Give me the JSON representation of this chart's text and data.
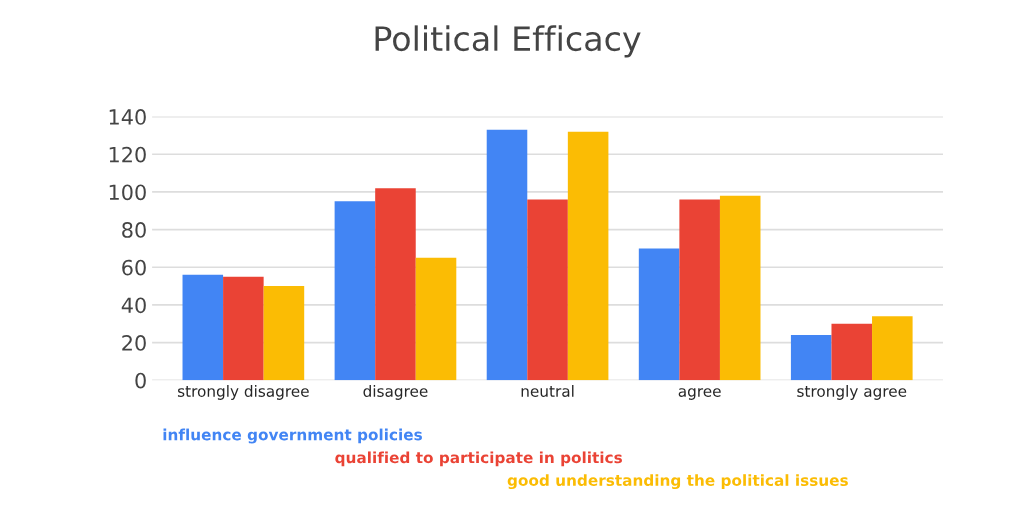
{
  "chart_data": {
    "type": "bar",
    "title": "Political Efficacy",
    "categories": [
      "strongly disagree",
      "disagree",
      "neutral",
      "agree",
      "strongly agree"
    ],
    "series": [
      {
        "name": "influence government policies",
        "color": "#4285f4",
        "values": [
          56,
          95,
          133,
          70,
          24
        ]
      },
      {
        "name": "qualified to participate in politics",
        "color": "#ea4335",
        "values": [
          55,
          102,
          96,
          96,
          30
        ]
      },
      {
        "name": "good understanding the political issues",
        "color": "#fbbc04",
        "values": [
          50,
          65,
          132,
          98,
          34
        ]
      }
    ],
    "ylim": [
      0,
      140
    ],
    "yticks": [
      0,
      20,
      40,
      60,
      80,
      100,
      120,
      140
    ],
    "grid": "y",
    "legend": "bottom"
  }
}
